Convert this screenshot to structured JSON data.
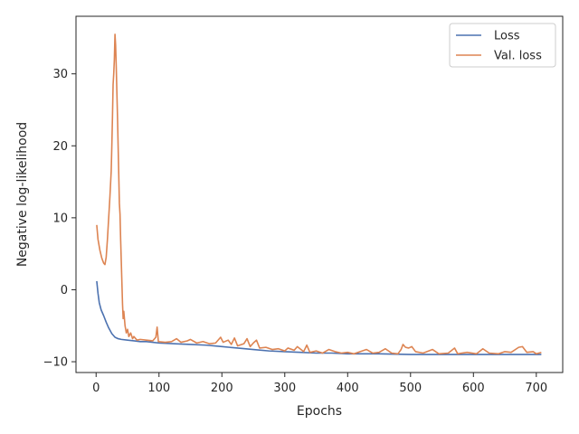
{
  "chart_data": {
    "type": "line",
    "title": "",
    "xlabel": "Epochs",
    "ylabel": "Negative log-likelihood",
    "xlim": [
      -32,
      742
    ],
    "ylim": [
      -11.5,
      38
    ],
    "xticks": [
      0,
      100,
      200,
      300,
      400,
      500,
      600,
      700
    ],
    "yticks": [
      -10,
      0,
      10,
      20,
      30
    ],
    "grid": false,
    "legend_position": "upper-right",
    "series": [
      {
        "name": "Loss",
        "color": "#4c72b0",
        "points": [
          [
            1,
            1.2
          ],
          [
            3,
            -0.5
          ],
          [
            5,
            -1.8
          ],
          [
            8,
            -2.8
          ],
          [
            12,
            -3.6
          ],
          [
            16,
            -4.5
          ],
          [
            20,
            -5.3
          ],
          [
            25,
            -6.1
          ],
          [
            30,
            -6.6
          ],
          [
            35,
            -6.8
          ],
          [
            40,
            -6.9
          ],
          [
            50,
            -7.0
          ],
          [
            60,
            -7.1
          ],
          [
            70,
            -7.2
          ],
          [
            80,
            -7.2
          ],
          [
            90,
            -7.3
          ],
          [
            100,
            -7.4
          ],
          [
            125,
            -7.5
          ],
          [
            150,
            -7.6
          ],
          [
            175,
            -7.7
          ],
          [
            200,
            -7.9
          ],
          [
            225,
            -8.1
          ],
          [
            250,
            -8.3
          ],
          [
            275,
            -8.5
          ],
          [
            300,
            -8.6
          ],
          [
            325,
            -8.7
          ],
          [
            350,
            -8.8
          ],
          [
            375,
            -8.8
          ],
          [
            400,
            -8.9
          ],
          [
            450,
            -8.9
          ],
          [
            500,
            -9.0
          ],
          [
            550,
            -9.0
          ],
          [
            600,
            -9.0
          ],
          [
            650,
            -9.0
          ],
          [
            700,
            -9.0
          ],
          [
            708,
            -9.0
          ]
        ]
      },
      {
        "name": "Val. loss",
        "color": "#dd8452",
        "points": [
          [
            1,
            9.0
          ],
          [
            3,
            7.0
          ],
          [
            6,
            5.5
          ],
          [
            9,
            4.4
          ],
          [
            12,
            3.7
          ],
          [
            14,
            3.5
          ],
          [
            16,
            4.5
          ],
          [
            18,
            7.0
          ],
          [
            20,
            10.0
          ],
          [
            22,
            13.0
          ],
          [
            24,
            16.5
          ],
          [
            25,
            20.0
          ],
          [
            26,
            24.0
          ],
          [
            27,
            28.5
          ],
          [
            28,
            30.0
          ],
          [
            29,
            32.0
          ],
          [
            30,
            35.5
          ],
          [
            31,
            34.0
          ],
          [
            32,
            31.0
          ],
          [
            33,
            27.5
          ],
          [
            34,
            24.0
          ],
          [
            35,
            20.0
          ],
          [
            36,
            16.0
          ],
          [
            37,
            12.0
          ],
          [
            38,
            10.5
          ],
          [
            39,
            7.0
          ],
          [
            40,
            4.0
          ],
          [
            41,
            1.0
          ],
          [
            42,
            -2.0
          ],
          [
            43,
            -4.0
          ],
          [
            44,
            -3.0
          ],
          [
            46,
            -5.0
          ],
          [
            48,
            -6.0
          ],
          [
            50,
            -5.5
          ],
          [
            52,
            -6.5
          ],
          [
            55,
            -6.0
          ],
          [
            58,
            -6.8
          ],
          [
            60,
            -6.5
          ],
          [
            65,
            -7.0
          ],
          [
            70,
            -6.9
          ],
          [
            80,
            -7.0
          ],
          [
            90,
            -7.1
          ],
          [
            95,
            -6.6
          ],
          [
            97,
            -5.2
          ],
          [
            99,
            -7.2
          ],
          [
            110,
            -7.3
          ],
          [
            120,
            -7.2
          ],
          [
            128,
            -6.8
          ],
          [
            135,
            -7.3
          ],
          [
            145,
            -7.1
          ],
          [
            150,
            -6.9
          ],
          [
            160,
            -7.4
          ],
          [
            170,
            -7.2
          ],
          [
            180,
            -7.5
          ],
          [
            190,
            -7.4
          ],
          [
            198,
            -6.6
          ],
          [
            202,
            -7.3
          ],
          [
            210,
            -7.0
          ],
          [
            215,
            -7.6
          ],
          [
            220,
            -6.7
          ],
          [
            225,
            -7.8
          ],
          [
            235,
            -7.5
          ],
          [
            240,
            -6.8
          ],
          [
            245,
            -7.9
          ],
          [
            250,
            -7.4
          ],
          [
            255,
            -7.0
          ],
          [
            260,
            -8.1
          ],
          [
            270,
            -8.0
          ],
          [
            280,
            -8.3
          ],
          [
            290,
            -8.2
          ],
          [
            300,
            -8.5
          ],
          [
            305,
            -8.1
          ],
          [
            315,
            -8.4
          ],
          [
            320,
            -7.9
          ],
          [
            330,
            -8.6
          ],
          [
            335,
            -7.7
          ],
          [
            340,
            -8.7
          ],
          [
            350,
            -8.5
          ],
          [
            360,
            -8.8
          ],
          [
            370,
            -8.3
          ],
          [
            380,
            -8.6
          ],
          [
            390,
            -8.8
          ],
          [
            400,
            -8.7
          ],
          [
            410,
            -8.9
          ],
          [
            420,
            -8.6
          ],
          [
            430,
            -8.3
          ],
          [
            440,
            -8.8
          ],
          [
            450,
            -8.7
          ],
          [
            460,
            -8.2
          ],
          [
            470,
            -8.8
          ],
          [
            480,
            -8.9
          ],
          [
            485,
            -8.3
          ],
          [
            488,
            -7.6
          ],
          [
            492,
            -8.0
          ],
          [
            497,
            -8.1
          ],
          [
            502,
            -7.9
          ],
          [
            508,
            -8.6
          ],
          [
            520,
            -8.8
          ],
          [
            535,
            -8.3
          ],
          [
            545,
            -8.9
          ],
          [
            560,
            -8.8
          ],
          [
            570,
            -8.1
          ],
          [
            575,
            -8.9
          ],
          [
            590,
            -8.7
          ],
          [
            605,
            -8.9
          ],
          [
            615,
            -8.2
          ],
          [
            625,
            -8.8
          ],
          [
            640,
            -8.9
          ],
          [
            650,
            -8.6
          ],
          [
            660,
            -8.7
          ],
          [
            672,
            -8.0
          ],
          [
            678,
            -7.9
          ],
          [
            685,
            -8.7
          ],
          [
            695,
            -8.6
          ],
          [
            700,
            -8.9
          ],
          [
            708,
            -8.7
          ]
        ]
      }
    ]
  }
}
